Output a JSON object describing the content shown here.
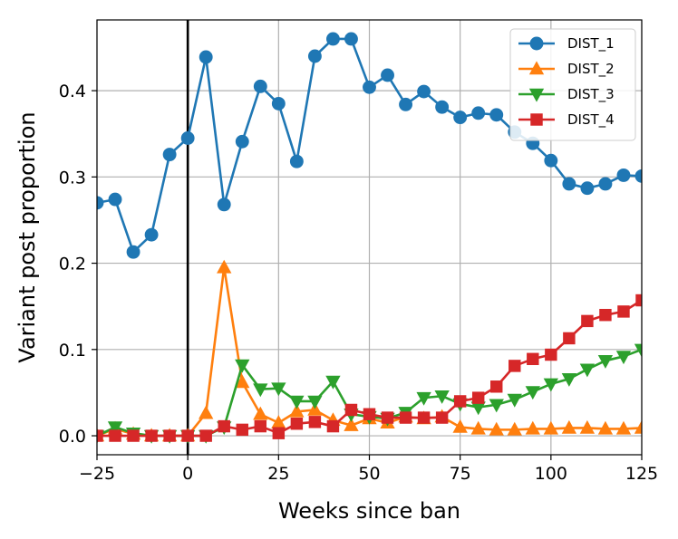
{
  "chart_data": {
    "type": "line",
    "title": "",
    "xlabel": "Weeks since ban",
    "ylabel": "Variant post proportion",
    "xlim": [
      -25,
      125
    ],
    "ylim": [
      -0.022,
      0.482
    ],
    "xticks": [
      -25,
      0,
      25,
      50,
      75,
      100,
      125
    ],
    "yticks": [
      0.0,
      0.1,
      0.2,
      0.3,
      0.4
    ],
    "ytick_labels": [
      "0.0",
      "0.1",
      "0.2",
      "0.3",
      "0.4"
    ],
    "grid": true,
    "legend_position": "top-right",
    "vline_x": 0,
    "x": [
      -25,
      -20,
      -15,
      -10,
      -5,
      0,
      5,
      10,
      15,
      20,
      25,
      30,
      35,
      40,
      45,
      50,
      55,
      60,
      65,
      70,
      75,
      80,
      85,
      90,
      95,
      100,
      105,
      110,
      115,
      120,
      125
    ],
    "series": [
      {
        "name": "DIST_1",
        "color": "#1f77b4",
        "marker": "circle",
        "values": [
          0.27,
          0.274,
          0.213,
          0.233,
          0.326,
          0.345,
          0.439,
          0.268,
          0.341,
          0.405,
          0.385,
          0.318,
          0.44,
          0.46,
          0.46,
          0.404,
          0.418,
          0.384,
          0.399,
          0.381,
          0.369,
          0.374,
          0.372,
          0.352,
          0.339,
          0.319,
          0.292,
          0.287,
          0.292,
          0.302,
          0.301
        ]
      },
      {
        "name": "DIST_2",
        "color": "#ff7f0e",
        "marker": "triangle-up",
        "values": [
          0.0,
          0.008,
          0.002,
          0.0,
          0.0,
          0.0,
          0.026,
          0.195,
          0.062,
          0.025,
          0.015,
          0.028,
          0.03,
          0.018,
          0.012,
          0.02,
          0.015,
          0.022,
          0.02,
          0.022,
          0.01,
          0.008,
          0.007,
          0.007,
          0.008,
          0.008,
          0.009,
          0.009,
          0.008,
          0.008,
          0.009
        ]
      },
      {
        "name": "DIST_3",
        "color": "#2ca02c",
        "marker": "triangle-down",
        "values": [
          0.0,
          0.01,
          0.003,
          0.0,
          0.0,
          0.0,
          0.0,
          0.01,
          0.082,
          0.054,
          0.055,
          0.04,
          0.04,
          0.063,
          0.025,
          0.022,
          0.02,
          0.027,
          0.044,
          0.046,
          0.037,
          0.033,
          0.036,
          0.042,
          0.051,
          0.06,
          0.066,
          0.077,
          0.087,
          0.092,
          0.1
        ]
      },
      {
        "name": "DIST_4",
        "color": "#d62728",
        "marker": "square",
        "values": [
          0.0,
          0.0,
          0.0,
          0.0,
          0.0,
          0.0,
          0.0,
          0.011,
          0.007,
          0.011,
          0.003,
          0.014,
          0.016,
          0.011,
          0.03,
          0.025,
          0.021,
          0.021,
          0.021,
          0.021,
          0.04,
          0.044,
          0.057,
          0.081,
          0.089,
          0.094,
          0.113,
          0.133,
          0.14,
          0.144,
          0.157
        ]
      }
    ]
  }
}
